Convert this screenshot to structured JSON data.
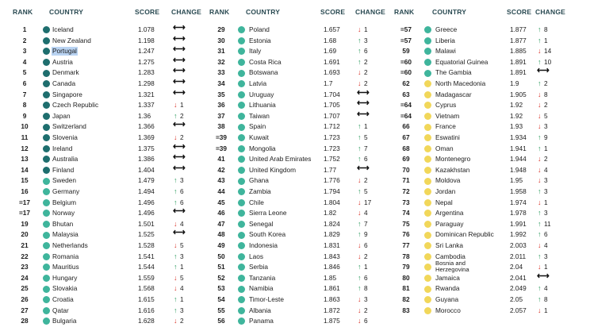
{
  "headers": {
    "rank": "RANK",
    "country": "COUNTRY",
    "score": "SCORE",
    "change": "CHANGE"
  },
  "colors": {
    "dark": "#1e6e6e",
    "mid": "#3fb59c",
    "light": "#8fd6c4",
    "yellow": "#f1d75a",
    "up": "#2a9a5c",
    "down": "#d9352b"
  },
  "columns": [
    {
      "rows": [
        {
          "rank": "1",
          "country": "Iceland",
          "score": "1.078",
          "change": "",
          "dir": "flat",
          "tier": "dark"
        },
        {
          "rank": "2",
          "country": "New Zealand",
          "score": "1.198",
          "change": "",
          "dir": "flat",
          "tier": "dark"
        },
        {
          "rank": "3",
          "country": "Portugal",
          "score": "1.247",
          "change": "",
          "dir": "flat",
          "tier": "dark",
          "selected": true
        },
        {
          "rank": "4",
          "country": "Austria",
          "score": "1.275",
          "change": "",
          "dir": "flat",
          "tier": "dark"
        },
        {
          "rank": "5",
          "country": "Denmark",
          "score": "1.283",
          "change": "",
          "dir": "flat",
          "tier": "dark"
        },
        {
          "rank": "6",
          "country": "Canada",
          "score": "1.298",
          "change": "",
          "dir": "flat",
          "tier": "dark"
        },
        {
          "rank": "7",
          "country": "Singapore",
          "score": "1.321",
          "change": "",
          "dir": "flat",
          "tier": "dark"
        },
        {
          "rank": "8",
          "country": "Czech Republic",
          "score": "1.337",
          "change": "1",
          "dir": "down",
          "tier": "dark"
        },
        {
          "rank": "9",
          "country": "Japan",
          "score": "1.36",
          "change": "2",
          "dir": "up",
          "tier": "dark"
        },
        {
          "rank": "10",
          "country": "Switzerland",
          "score": "1.366",
          "change": "",
          "dir": "flat",
          "tier": "dark"
        },
        {
          "rank": "11",
          "country": "Slovenia",
          "score": "1.369",
          "change": "2",
          "dir": "down",
          "tier": "dark"
        },
        {
          "rank": "12",
          "country": "Ireland",
          "score": "1.375",
          "change": "",
          "dir": "flat",
          "tier": "dark"
        },
        {
          "rank": "13",
          "country": "Australia",
          "score": "1.386",
          "change": "",
          "dir": "flat",
          "tier": "dark"
        },
        {
          "rank": "14",
          "country": "Finland",
          "score": "1.404",
          "change": "",
          "dir": "flat",
          "tier": "dark"
        },
        {
          "rank": "15",
          "country": "Sweden",
          "score": "1.479",
          "change": "3",
          "dir": "up",
          "tier": "mid"
        },
        {
          "rank": "16",
          "country": "Germany",
          "score": "1.494",
          "change": "6",
          "dir": "up",
          "tier": "mid"
        },
        {
          "rank": "=17",
          "country": "Belgium",
          "score": "1.496",
          "change": "6",
          "dir": "up",
          "tier": "mid"
        },
        {
          "rank": "=17",
          "country": "Norway",
          "score": "1.496",
          "change": "",
          "dir": "flat",
          "tier": "mid"
        },
        {
          "rank": "19",
          "country": "Bhutan",
          "score": "1.501",
          "change": "4",
          "dir": "down",
          "tier": "mid"
        },
        {
          "rank": "20",
          "country": "Malaysia",
          "score": "1.525",
          "change": "",
          "dir": "flat",
          "tier": "mid"
        },
        {
          "rank": "21",
          "country": "Netherlands",
          "score": "1.528",
          "change": "5",
          "dir": "down",
          "tier": "mid"
        },
        {
          "rank": "22",
          "country": "Romania",
          "score": "1.541",
          "change": "3",
          "dir": "up",
          "tier": "mid"
        },
        {
          "rank": "23",
          "country": "Mauritius",
          "score": "1.544",
          "change": "1",
          "dir": "up",
          "tier": "mid"
        },
        {
          "rank": "24",
          "country": "Hungary",
          "score": "1.559",
          "change": "5",
          "dir": "down",
          "tier": "mid"
        },
        {
          "rank": "25",
          "country": "Slovakia",
          "score": "1.568",
          "change": "4",
          "dir": "down",
          "tier": "mid"
        },
        {
          "rank": "26",
          "country": "Croatia",
          "score": "1.615",
          "change": "1",
          "dir": "up",
          "tier": "mid"
        },
        {
          "rank": "27",
          "country": "Qatar",
          "score": "1.616",
          "change": "3",
          "dir": "up",
          "tier": "mid"
        },
        {
          "rank": "28",
          "country": "Bulgaria",
          "score": "1.628",
          "change": "2",
          "dir": "down",
          "tier": "mid"
        }
      ]
    },
    {
      "rows": [
        {
          "rank": "29",
          "country": "Poland",
          "score": "1.657",
          "change": "1",
          "dir": "down",
          "tier": "mid"
        },
        {
          "rank": "30",
          "country": "Estonia",
          "score": "1.68",
          "change": "3",
          "dir": "up",
          "tier": "mid"
        },
        {
          "rank": "31",
          "country": "Italy",
          "score": "1.69",
          "change": "6",
          "dir": "up",
          "tier": "mid"
        },
        {
          "rank": "32",
          "country": "Costa Rica",
          "score": "1.691",
          "change": "2",
          "dir": "up",
          "tier": "mid"
        },
        {
          "rank": "33",
          "country": "Botswana",
          "score": "1.693",
          "change": "2",
          "dir": "down",
          "tier": "mid"
        },
        {
          "rank": "34",
          "country": "Latvia",
          "score": "1.7",
          "change": "2",
          "dir": "down",
          "tier": "mid"
        },
        {
          "rank": "35",
          "country": "Uruguay",
          "score": "1.704",
          "change": "",
          "dir": "flat",
          "tier": "mid"
        },
        {
          "rank": "36",
          "country": "Lithuania",
          "score": "1.705",
          "change": "",
          "dir": "flat",
          "tier": "mid"
        },
        {
          "rank": "37",
          "country": "Taiwan",
          "score": "1.707",
          "change": "",
          "dir": "flat",
          "tier": "mid"
        },
        {
          "rank": "38",
          "country": "Spain",
          "score": "1.712",
          "change": "1",
          "dir": "up",
          "tier": "mid"
        },
        {
          "rank": "=39",
          "country": "Kuwait",
          "score": "1.723",
          "change": "5",
          "dir": "up",
          "tier": "mid"
        },
        {
          "rank": "=39",
          "country": "Mongolia",
          "score": "1.723",
          "change": "7",
          "dir": "up",
          "tier": "mid"
        },
        {
          "rank": "41",
          "country": "United Arab Emirates",
          "score": "1.752",
          "change": "6",
          "dir": "up",
          "tier": "mid"
        },
        {
          "rank": "42",
          "country": "United Kingdom",
          "score": "1.77",
          "change": "",
          "dir": "flat",
          "tier": "mid"
        },
        {
          "rank": "43",
          "country": "Ghana",
          "score": "1.776",
          "change": "2",
          "dir": "down",
          "tier": "mid"
        },
        {
          "rank": "44",
          "country": "Zambia",
          "score": "1.794",
          "change": "5",
          "dir": "up",
          "tier": "mid"
        },
        {
          "rank": "45",
          "country": "Chile",
          "score": "1.804",
          "change": "17",
          "dir": "down",
          "tier": "mid"
        },
        {
          "rank": "46",
          "country": "Sierra Leone",
          "score": "1.82",
          "change": "4",
          "dir": "down",
          "tier": "mid"
        },
        {
          "rank": "47",
          "country": "Senegal",
          "score": "1.824",
          "change": "7",
          "dir": "up",
          "tier": "mid"
        },
        {
          "rank": "48",
          "country": "South Korea",
          "score": "1.829",
          "change": "9",
          "dir": "up",
          "tier": "mid"
        },
        {
          "rank": "49",
          "country": "Indonesia",
          "score": "1.831",
          "change": "6",
          "dir": "down",
          "tier": "mid"
        },
        {
          "rank": "50",
          "country": "Laos",
          "score": "1.843",
          "change": "2",
          "dir": "down",
          "tier": "mid"
        },
        {
          "rank": "51",
          "country": "Serbia",
          "score": "1.846",
          "change": "1",
          "dir": "up",
          "tier": "mid"
        },
        {
          "rank": "52",
          "country": "Tanzania",
          "score": "1.85",
          "change": "6",
          "dir": "up",
          "tier": "mid"
        },
        {
          "rank": "53",
          "country": "Namibia",
          "score": "1.861",
          "change": "8",
          "dir": "up",
          "tier": "mid"
        },
        {
          "rank": "54",
          "country": "Timor-Leste",
          "score": "1.863",
          "change": "3",
          "dir": "down",
          "tier": "mid"
        },
        {
          "rank": "55",
          "country": "Albania",
          "score": "1.872",
          "change": "2",
          "dir": "down",
          "tier": "mid"
        },
        {
          "rank": "56",
          "country": "Panama",
          "score": "1.875",
          "change": "6",
          "dir": "down",
          "tier": "mid"
        }
      ]
    },
    {
      "rows": [
        {
          "rank": "=57",
          "country": "Greece",
          "score": "1.877",
          "change": "8",
          "dir": "up",
          "tier": "mid"
        },
        {
          "rank": "=57",
          "country": "Liberia",
          "score": "1.877",
          "change": "1",
          "dir": "up",
          "tier": "mid"
        },
        {
          "rank": "59",
          "country": "Malawi",
          "score": "1.885",
          "change": "14",
          "dir": "down",
          "tier": "mid"
        },
        {
          "rank": "=60",
          "country": "Equatorial Guinea",
          "score": "1.891",
          "change": "10",
          "dir": "up",
          "tier": "mid"
        },
        {
          "rank": "=60",
          "country": "The Gambia",
          "score": "1.891",
          "change": "",
          "dir": "flat",
          "tier": "mid"
        },
        {
          "rank": "62",
          "country": "North Macedonia",
          "score": "1.9",
          "change": "2",
          "dir": "up",
          "tier": "yellow"
        },
        {
          "rank": "63",
          "country": "Madagascar",
          "score": "1.905",
          "change": "8",
          "dir": "down",
          "tier": "yellow"
        },
        {
          "rank": "=64",
          "country": "Cyprus",
          "score": "1.92",
          "change": "2",
          "dir": "down",
          "tier": "yellow"
        },
        {
          "rank": "=64",
          "country": "Vietnam",
          "score": "1.92",
          "change": "5",
          "dir": "down",
          "tier": "yellow"
        },
        {
          "rank": "66",
          "country": "France",
          "score": "1.93",
          "change": "3",
          "dir": "down",
          "tier": "yellow"
        },
        {
          "rank": "67",
          "country": "Eswatini",
          "score": "1.934",
          "change": "9",
          "dir": "up",
          "tier": "yellow"
        },
        {
          "rank": "68",
          "country": "Oman",
          "score": "1.941",
          "change": "1",
          "dir": "up",
          "tier": "yellow"
        },
        {
          "rank": "69",
          "country": "Montenegro",
          "score": "1.944",
          "change": "2",
          "dir": "down",
          "tier": "yellow"
        },
        {
          "rank": "70",
          "country": "Kazakhstan",
          "score": "1.948",
          "change": "4",
          "dir": "down",
          "tier": "yellow"
        },
        {
          "rank": "71",
          "country": "Moldova",
          "score": "1.95",
          "change": "3",
          "dir": "down",
          "tier": "yellow"
        },
        {
          "rank": "72",
          "country": "Jordan",
          "score": "1.958",
          "change": "3",
          "dir": "up",
          "tier": "yellow"
        },
        {
          "rank": "73",
          "country": "Nepal",
          "score": "1.974",
          "change": "1",
          "dir": "down",
          "tier": "yellow"
        },
        {
          "rank": "74",
          "country": "Argentina",
          "score": "1.978",
          "score2": "",
          "change": "3",
          "dir": "up",
          "tier": "yellow"
        },
        {
          "rank": "75",
          "country": "Paraguay",
          "score": "1.991",
          "change": "11",
          "dir": "up",
          "tier": "yellow"
        },
        {
          "rank": "76",
          "country": "Dominican Republic",
          "score": "1.992",
          "change": "6",
          "dir": "up",
          "tier": "yellow"
        },
        {
          "rank": "77",
          "country": "Sri Lanka",
          "score": "2.003",
          "change": "4",
          "dir": "down",
          "tier": "yellow"
        },
        {
          "rank": "78",
          "country": "Cambodia",
          "score": "2.011",
          "change": "3",
          "dir": "up",
          "tier": "yellow"
        },
        {
          "rank": "79",
          "country": "Bosnia and Herzegovina",
          "score": "2.04",
          "change": "1",
          "dir": "down",
          "tier": "yellow",
          "twoLine": true
        },
        {
          "rank": "80",
          "country": "Jamaica",
          "score": "2.041",
          "change": "",
          "dir": "flat",
          "tier": "yellow"
        },
        {
          "rank": "81",
          "country": "Rwanda",
          "score": "2.049",
          "change": "4",
          "dir": "up",
          "tier": "yellow"
        },
        {
          "rank": "82",
          "country": "Guyana",
          "score": "2.05",
          "change": "8",
          "dir": "up",
          "tier": "yellow"
        },
        {
          "rank": "83",
          "country": "Morocco",
          "score": "2.057",
          "change": "1",
          "dir": "down",
          "tier": "yellow"
        }
      ]
    }
  ]
}
